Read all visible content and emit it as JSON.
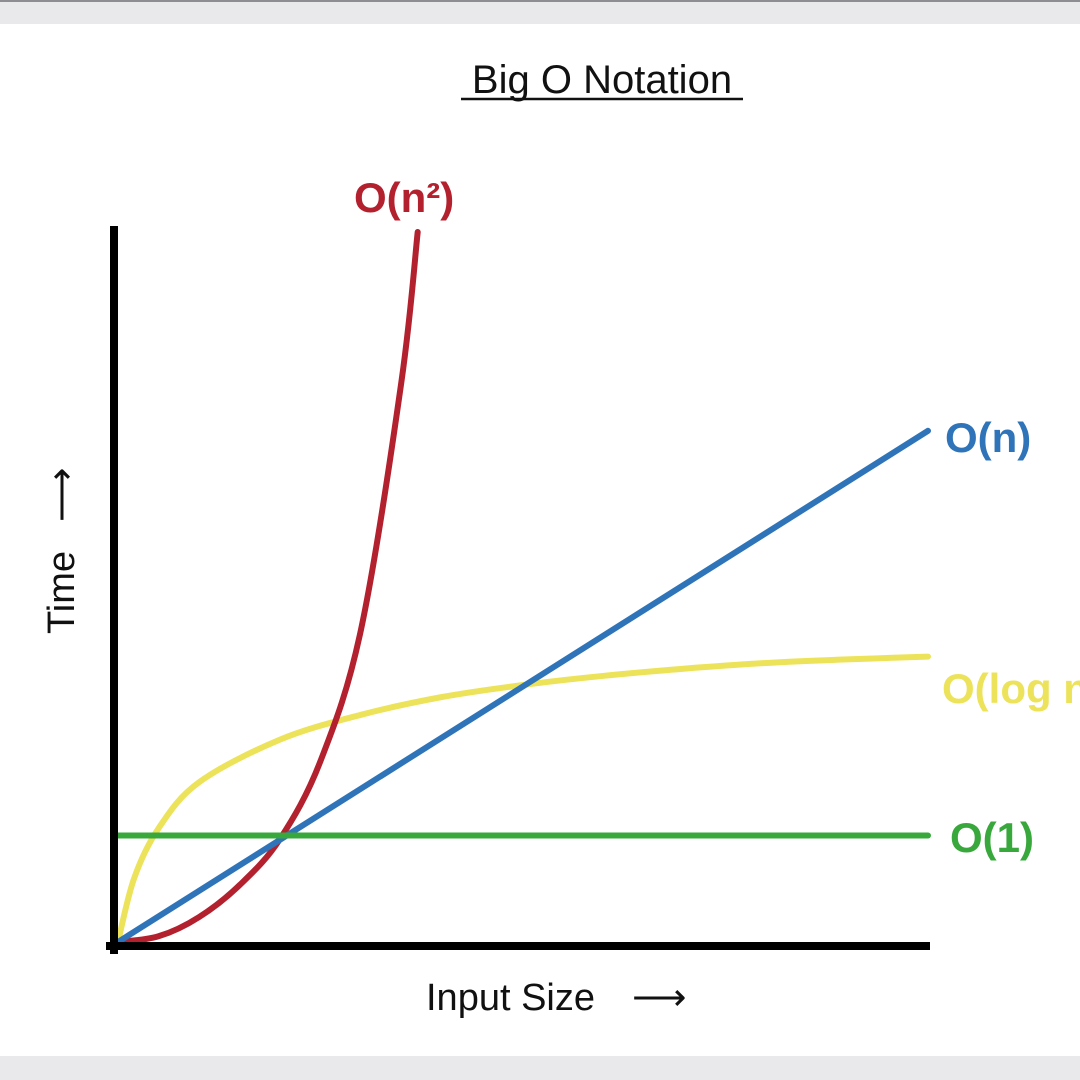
{
  "chart_data": {
    "type": "line",
    "title": "Big O Notation",
    "xlabel": "Input Size",
    "ylabel": "Time",
    "xlabel_arrow": "⟶",
    "ylabel_arrow": "⟶",
    "xlim": [
      0,
      10
    ],
    "ylim": [
      0,
      10
    ],
    "grid": false,
    "legend": "none",
    "series": [
      {
        "name": "O(n²)",
        "color": "#b3202e",
        "x": [
          0,
          0.5,
          1,
          1.5,
          2,
          2.5,
          3,
          3.5,
          3.7
        ],
        "y": [
          0,
          0.08,
          0.35,
          0.8,
          1.45,
          2.55,
          4.4,
          7.9,
          10
        ]
      },
      {
        "name": "O(n)",
        "color": "#2f74b8",
        "x": [
          0,
          10
        ],
        "y": [
          0,
          7.2
        ]
      },
      {
        "name": "O(log n)",
        "color": "#ece35a",
        "x": [
          0,
          0.2,
          0.5,
          1,
          2,
          3,
          4,
          5,
          6,
          7,
          8,
          9,
          10
        ],
        "y": [
          0,
          0.9,
          1.6,
          2.25,
          2.85,
          3.2,
          3.45,
          3.62,
          3.75,
          3.85,
          3.93,
          3.98,
          4.02
        ]
      },
      {
        "name": "O(1)",
        "color": "#38a83c",
        "x": [
          0,
          10
        ],
        "y": [
          1.5,
          1.5
        ]
      }
    ]
  }
}
